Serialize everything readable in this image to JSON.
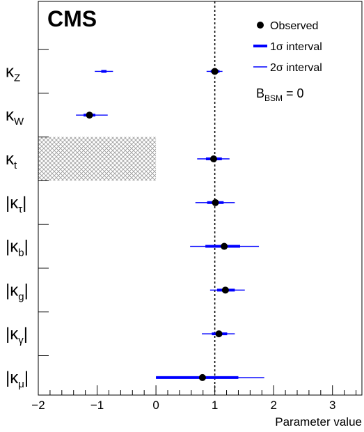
{
  "chart_data": {
    "type": "scatter",
    "experiment_label": "CMS",
    "xlabel": "Parameter value",
    "xlim": [
      -2,
      3.5
    ],
    "x_ticks": [
      -2,
      -1,
      0,
      1,
      2,
      3
    ],
    "x_tick_labels": [
      "−2",
      "−1",
      "0",
      "1",
      "2",
      "3"
    ],
    "reference_line_x": 1,
    "legend": {
      "placement": "top-right",
      "entries": [
        {
          "label": "Observed",
          "marker": "dot",
          "color": "#000000"
        },
        {
          "label": "1σ interval",
          "marker": "thick-line",
          "color": "#0000ff"
        },
        {
          "label": "2σ interval",
          "marker": "thin-line",
          "color": "#0000ff"
        }
      ]
    },
    "annotation": {
      "base": "B",
      "sub": "BSM",
      "suffix": " = 0"
    },
    "parameters": [
      {
        "name": "κ",
        "sub": "Z",
        "abs": false,
        "observed": 1.0,
        "sigma1": [
          0.93,
          1.08
        ],
        "sigma2": [
          0.86,
          1.13
        ],
        "second_minimum": {
          "observed": -0.88,
          "sigma1": [
            -0.93,
            -0.84
          ],
          "sigma2": [
            -1.04,
            -0.73
          ]
        }
      },
      {
        "name": "κ",
        "sub": "W",
        "abs": false,
        "observed": -1.13,
        "sigma1": [
          -1.23,
          -1.03
        ],
        "sigma2": [
          -1.36,
          -0.82
        ]
      },
      {
        "name": "κ",
        "sub": "t",
        "abs": false,
        "observed": 0.98,
        "sigma1": [
          0.85,
          1.12
        ],
        "sigma2": [
          0.7,
          1.25
        ],
        "excluded_band": [
          -2,
          0
        ]
      },
      {
        "name": "κ",
        "sub": "τ",
        "abs": true,
        "observed": 1.01,
        "sigma1": [
          0.87,
          1.15
        ],
        "sigma2": [
          0.67,
          1.34
        ]
      },
      {
        "name": "κ",
        "sub": "b",
        "abs": true,
        "observed": 1.16,
        "sigma1": [
          0.84,
          1.43
        ],
        "sigma2": [
          0.58,
          1.75
        ]
      },
      {
        "name": "κ",
        "sub": "g",
        "abs": true,
        "observed": 1.18,
        "sigma1": [
          1.04,
          1.34
        ],
        "sigma2": [
          0.92,
          1.51
        ]
      },
      {
        "name": "κ",
        "sub": "γ",
        "abs": true,
        "observed": 1.07,
        "sigma1": [
          0.95,
          1.21
        ],
        "sigma2": [
          0.78,
          1.34
        ]
      },
      {
        "name": "κ",
        "sub": "μ",
        "abs": true,
        "observed": 0.79,
        "sigma1": [
          0.0,
          1.4
        ],
        "sigma2": [
          0.0,
          1.84
        ]
      }
    ],
    "grid": false
  }
}
